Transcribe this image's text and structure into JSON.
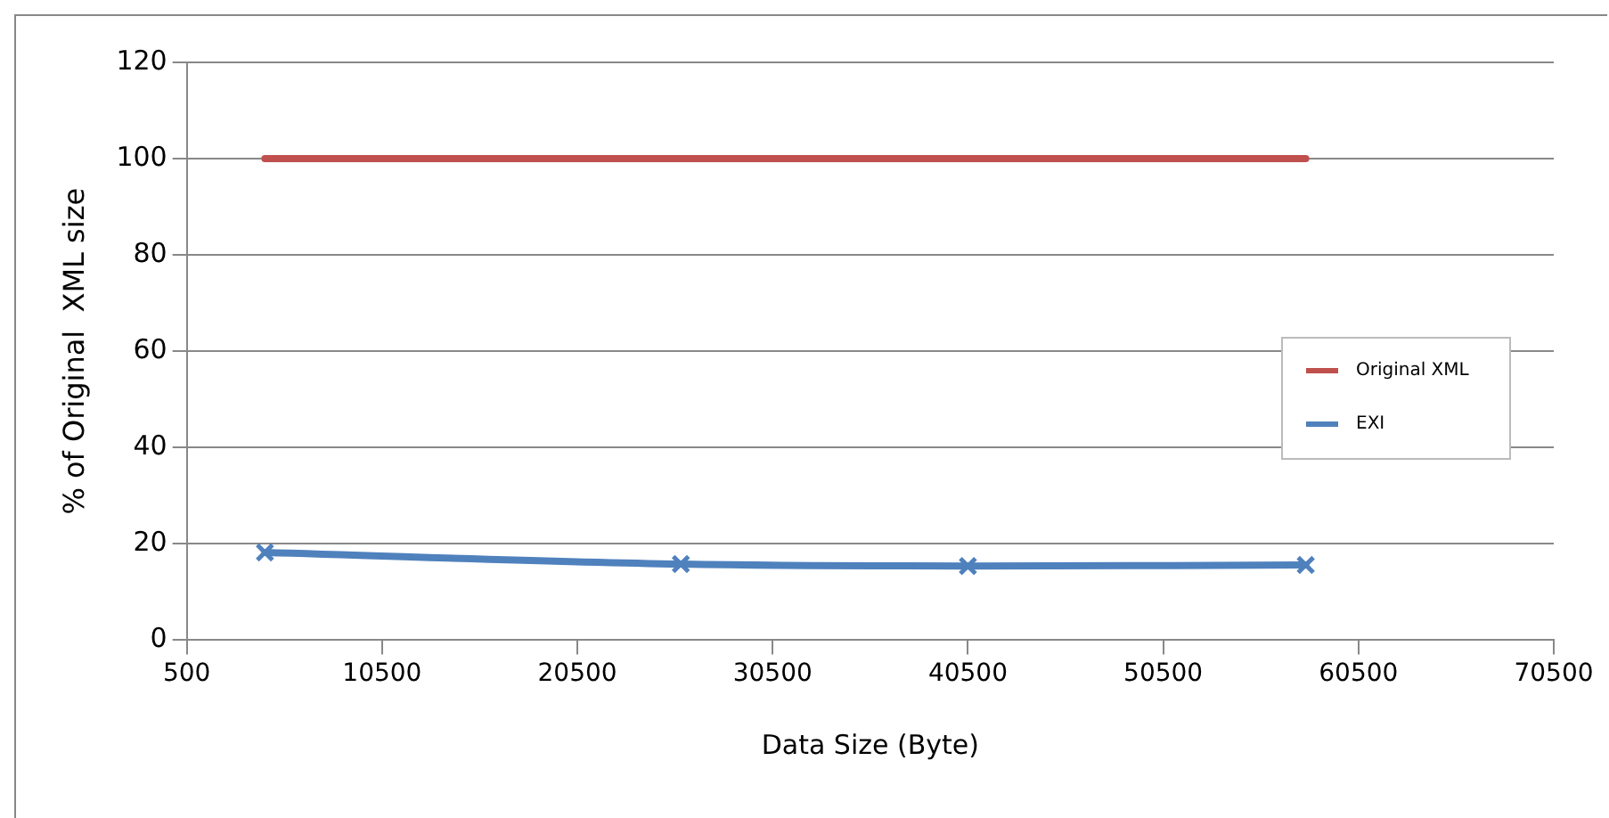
{
  "chart_data": {
    "type": "line",
    "xlabel": "Data Size (Byte)",
    "ylabel": "% of Original  XML size",
    "x": [
      4500,
      25800,
      40500,
      57800
    ],
    "series": [
      {
        "name": "Original XML",
        "color": "#c0504d",
        "values": [
          100,
          100,
          100,
          100
        ],
        "marker": "none"
      },
      {
        "name": "EXI",
        "color": "#4f81bd",
        "values": [
          18.2,
          15.8,
          15.4,
          15.6
        ],
        "marker": "cross"
      }
    ],
    "xlim": [
      500,
      70500
    ],
    "xticks": [
      500,
      10500,
      20500,
      30500,
      40500,
      50500,
      60500,
      70500
    ],
    "ylim": [
      0,
      120
    ],
    "yticks": [
      0,
      20,
      40,
      60,
      80,
      100,
      120
    ],
    "grid": "y",
    "legend": "right",
    "line_style": "solid"
  }
}
